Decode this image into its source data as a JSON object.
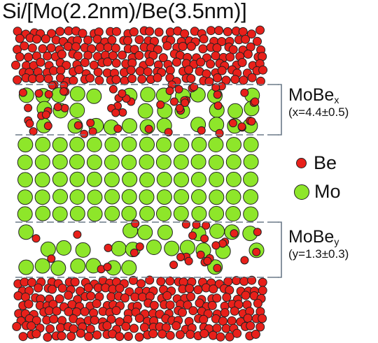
{
  "title": "Si/[Mo(2.2nm)/Be(3.5nm)]",
  "colors": {
    "be": "#e8201a",
    "mo": "#8ee62a",
    "outline": "#222222",
    "dash": "#6b7a88"
  },
  "legend": [
    {
      "label": "Be",
      "color": "#e8201a"
    },
    {
      "label": "Mo",
      "color": "#8ee62a"
    }
  ],
  "interlayers": [
    {
      "name": "MoBe",
      "subscript": "x",
      "note": "(x=4.4±0.5)"
    },
    {
      "name": "MoBe",
      "subscript": "y",
      "note": "(y=1.3±0.3)"
    }
  ]
}
